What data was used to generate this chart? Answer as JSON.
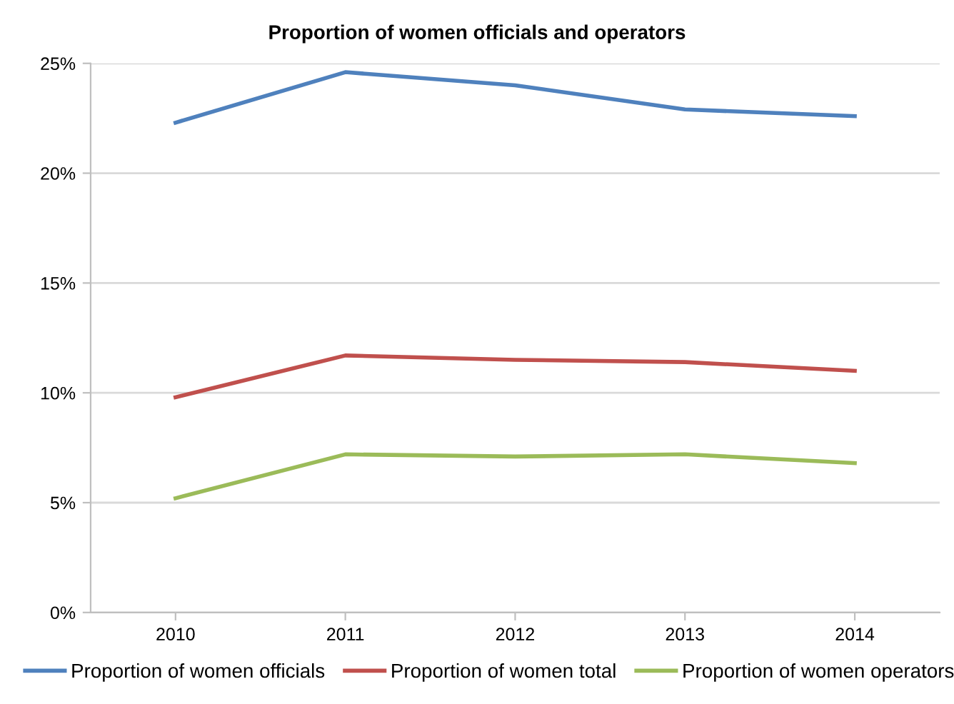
{
  "chart_data": {
    "type": "line",
    "title": "Proportion of women officials and operators",
    "categories": [
      "2010",
      "2011",
      "2012",
      "2013",
      "2014"
    ],
    "series": [
      {
        "name": "Proportion of women officials",
        "color": "#4f81bd",
        "values": [
          22.3,
          24.6,
          24.0,
          22.9,
          22.6
        ]
      },
      {
        "name": "Proportion of women total",
        "color": "#c0504d",
        "values": [
          9.8,
          11.7,
          11.5,
          11.4,
          11.0
        ]
      },
      {
        "name": "Proportion of women operators",
        "color": "#9bbb59",
        "values": [
          5.2,
          7.2,
          7.1,
          7.2,
          6.8
        ]
      }
    ],
    "ylim": [
      0,
      25
    ],
    "yticks": [
      {
        "value": 0,
        "label": "0%"
      },
      {
        "value": 5,
        "label": "5%"
      },
      {
        "value": 10,
        "label": "10%"
      },
      {
        "value": 15,
        "label": "15%"
      },
      {
        "value": 20,
        "label": "20%"
      },
      {
        "value": 25,
        "label": "25%"
      }
    ],
    "grid": "y",
    "legend": "bottom",
    "marker": "none",
    "line_style": "solid"
  }
}
